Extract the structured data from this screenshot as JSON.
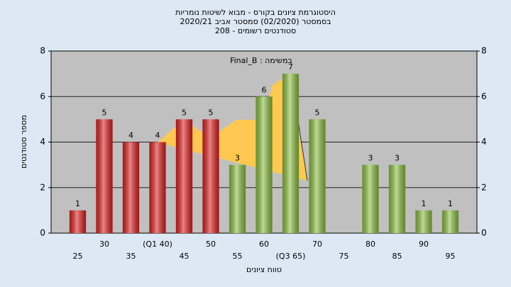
{
  "chart_data": {
    "type": "bar",
    "title": [
      "היסטוגרמת ציונים בקורס - מבוא לשיטות נומריות",
      "בסמסטר (02/2020) סמסטר אביב 2020/21",
      "סטודנטים רשומים - 208"
    ],
    "legend_text": "Final_B : במשימה",
    "ylabel": "מספר סטודנטים",
    "xlabel": "טווח ציונים",
    "categories": [
      "25",
      "30",
      "35",
      "(Q1 40)",
      "45",
      "50",
      "55",
      "60",
      "(Q3 65)",
      "70",
      "75",
      "80",
      "85",
      "90",
      "95"
    ],
    "values": [
      1,
      5,
      4,
      4,
      5,
      5,
      3,
      6,
      7,
      5,
      0,
      3,
      3,
      1,
      1
    ],
    "colors": [
      "#e02020",
      "#e02020",
      "#e02020",
      "#e02020",
      "#e02020",
      "#e02020",
      "#8cc040",
      "#8cc040",
      "#8cc040",
      "#8cc040",
      "#8cc040",
      "#8cc040",
      "#8cc040",
      "#8cc040",
      "#8cc040"
    ],
    "ylim": [
      0,
      8
    ],
    "yticks": [
      0,
      2,
      4,
      6,
      8
    ],
    "grid": true
  }
}
